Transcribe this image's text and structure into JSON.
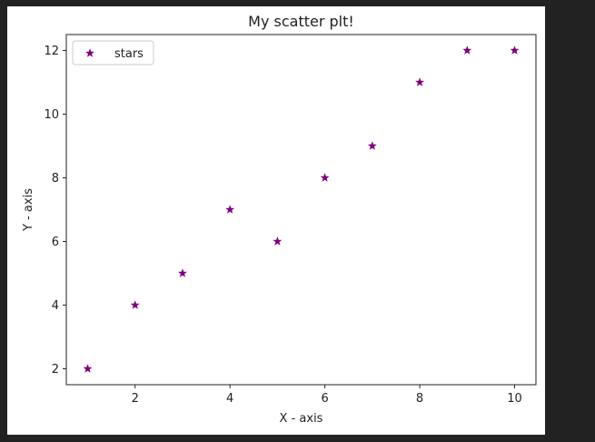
{
  "chart_data": {
    "type": "scatter",
    "title": "My scatter plt!",
    "xlabel": "X - axis",
    "ylabel": "Y - axis",
    "xlim": [
      0.55,
      10.45
    ],
    "ylim": [
      1.5,
      12.5
    ],
    "xticks": [
      2,
      4,
      6,
      8,
      10
    ],
    "yticks": [
      2,
      4,
      6,
      8,
      10,
      12
    ],
    "grid": false,
    "legend_position": "top-left",
    "series": [
      {
        "name": "stars",
        "marker": "star",
        "color": "#800080",
        "x": [
          1,
          2,
          3,
          4,
          5,
          6,
          7,
          8,
          9,
          10
        ],
        "y": [
          2,
          4,
          5,
          7,
          6,
          8,
          9,
          11,
          12,
          12
        ]
      }
    ]
  }
}
